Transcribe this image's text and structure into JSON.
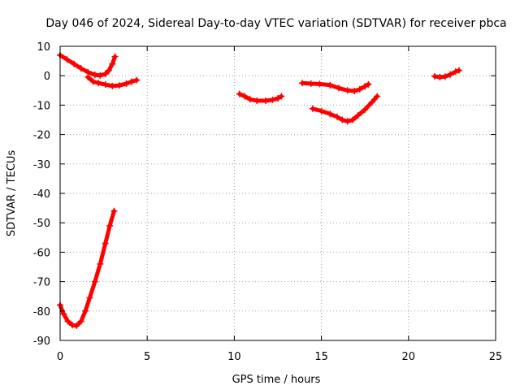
{
  "chart_data": {
    "type": "scatter",
    "title": "Day 046 of 2024, Sidereal Day-to-day VTEC variation (SDTVAR) for receiver pbca",
    "xlabel": "GPS time / hours",
    "ylabel": "SDTVAR / TECUs",
    "xlim": [
      0,
      25
    ],
    "ylim": [
      -90,
      10
    ],
    "xticks": [
      0,
      5,
      10,
      15,
      20,
      25
    ],
    "yticks": [
      10,
      0,
      -10,
      -20,
      -30,
      -40,
      -50,
      -60,
      -70,
      -80,
      -90
    ],
    "grid": true,
    "marker": "plus",
    "color": "#ff0000",
    "series": [
      {
        "values": [
          [
            0.0,
            7.0
          ],
          [
            0.4,
            5.5
          ],
          [
            0.8,
            4.0
          ],
          [
            1.2,
            2.5
          ],
          [
            1.6,
            1.2
          ],
          [
            2.0,
            0.3
          ],
          [
            2.3,
            0.1
          ],
          [
            2.6,
            0.6
          ],
          [
            2.8,
            1.8
          ],
          [
            3.0,
            4.0
          ],
          [
            3.15,
            6.5
          ]
        ]
      },
      {
        "values": [
          [
            1.6,
            -0.5
          ],
          [
            1.9,
            -2.0
          ],
          [
            2.2,
            -2.5
          ],
          [
            2.6,
            -3.0
          ],
          [
            3.0,
            -3.5
          ],
          [
            3.4,
            -3.3
          ],
          [
            3.8,
            -2.7
          ],
          [
            4.1,
            -2.0
          ],
          [
            4.4,
            -1.5
          ]
        ]
      },
      {
        "values": [
          [
            10.3,
            -6.2
          ],
          [
            10.6,
            -7.0
          ],
          [
            10.9,
            -8.0
          ],
          [
            11.3,
            -8.5
          ],
          [
            11.8,
            -8.5
          ],
          [
            12.2,
            -8.2
          ],
          [
            12.5,
            -7.7
          ],
          [
            12.7,
            -7.0
          ]
        ]
      },
      {
        "values": [
          [
            13.9,
            -2.5
          ],
          [
            14.4,
            -2.7
          ],
          [
            14.9,
            -2.8
          ],
          [
            15.5,
            -3.2
          ],
          [
            16.0,
            -4.2
          ],
          [
            16.5,
            -5.0
          ],
          [
            16.9,
            -5.2
          ],
          [
            17.2,
            -4.6
          ],
          [
            17.5,
            -3.6
          ],
          [
            17.7,
            -2.9
          ]
        ]
      },
      {
        "values": [
          [
            14.5,
            -11.2
          ],
          [
            15.0,
            -12.0
          ],
          [
            15.5,
            -13.0
          ],
          [
            15.9,
            -14.0
          ],
          [
            16.2,
            -15.0
          ],
          [
            16.5,
            -15.5
          ],
          [
            16.8,
            -15.0
          ],
          [
            17.1,
            -13.5
          ],
          [
            17.5,
            -11.5
          ],
          [
            17.9,
            -9.0
          ],
          [
            18.2,
            -7.0
          ]
        ]
      },
      {
        "values": [
          [
            21.5,
            -0.2
          ],
          [
            21.8,
            -0.5
          ],
          [
            22.1,
            -0.3
          ],
          [
            22.4,
            0.4
          ],
          [
            22.7,
            1.4
          ],
          [
            22.9,
            1.8
          ]
        ]
      },
      {
        "values": [
          [
            0.0,
            -78.0
          ],
          [
            0.2,
            -81.0
          ],
          [
            0.45,
            -83.5
          ],
          [
            0.7,
            -84.8
          ],
          [
            0.95,
            -85.0
          ],
          [
            1.2,
            -83.5
          ],
          [
            1.45,
            -80.0
          ],
          [
            1.7,
            -75.5
          ],
          [
            2.0,
            -70.0
          ],
          [
            2.3,
            -64.0
          ],
          [
            2.6,
            -57.0
          ],
          [
            2.85,
            -51.0
          ],
          [
            3.1,
            -46.0
          ]
        ]
      }
    ]
  }
}
